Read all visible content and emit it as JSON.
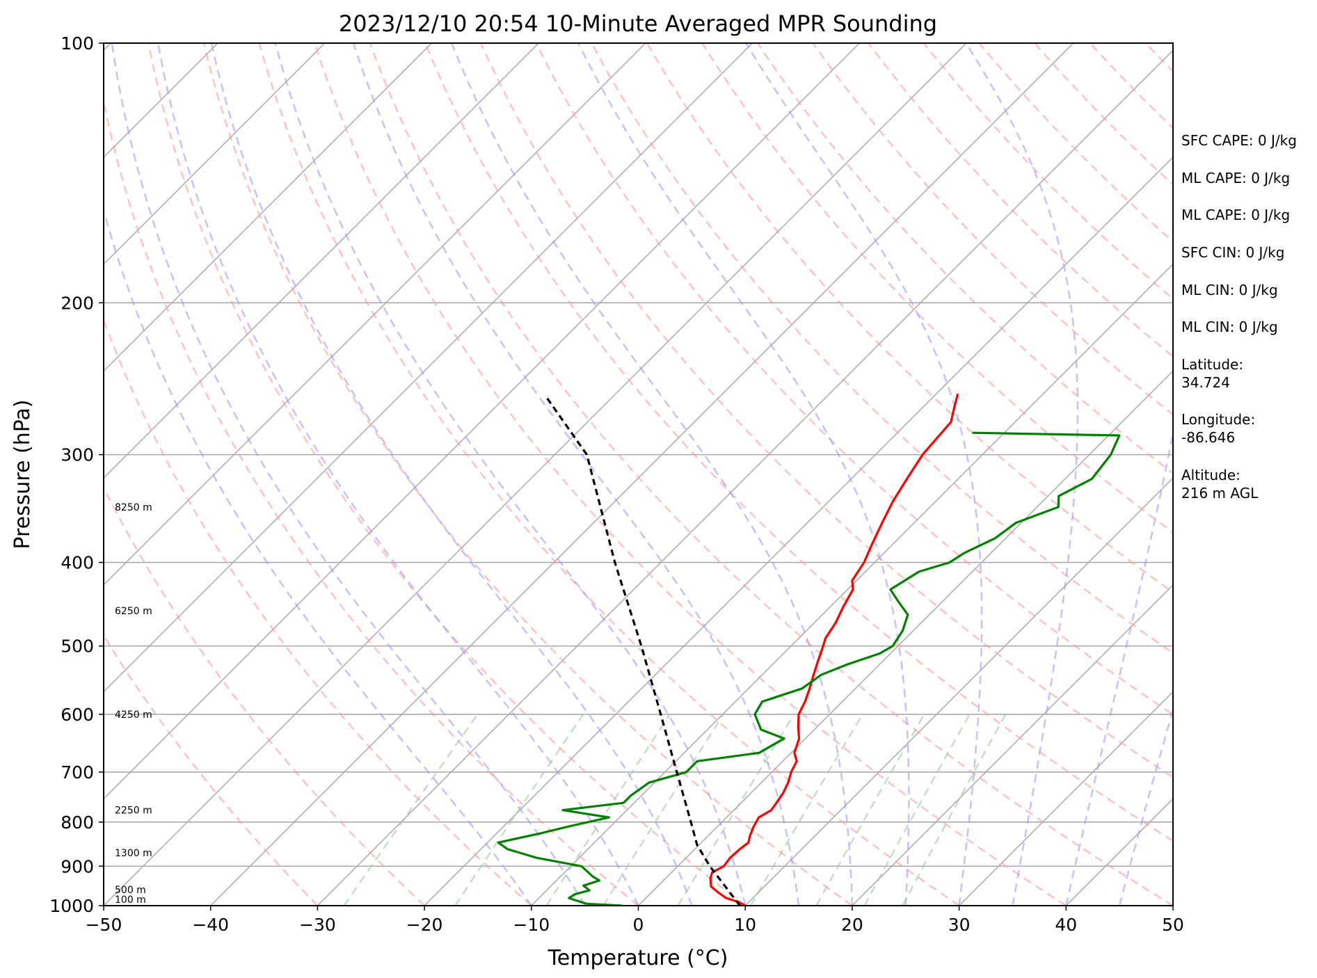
{
  "chart_data": {
    "type": "line",
    "title": "2023/12/10 20:54 10-Minute Averaged MPR Sounding",
    "xlabel": "Temperature (°C)",
    "ylabel": "Pressure (hPa)",
    "xlim": [
      -50,
      50
    ],
    "ylim": [
      1000,
      100
    ],
    "y_scale": "log",
    "x_ticks": [
      "−50",
      "−40",
      "−30",
      "−20",
      "−10",
      "0",
      "10",
      "20",
      "30",
      "40",
      "50"
    ],
    "y_ticks": [
      "100",
      "200",
      "300",
      "400",
      "500",
      "600",
      "700",
      "800",
      "900",
      "1000"
    ],
    "height_labels": [
      "8250 m",
      "6250 m",
      "4250 m",
      "2250 m",
      "1300 m",
      "500 m",
      "100 m"
    ],
    "height_label_pressures": [
      345,
      455,
      600,
      775,
      868,
      958,
      1000
    ],
    "grid": true,
    "background_lines": [
      "dry adiabats",
      "moist adiabats",
      "mixing ratio lines",
      "isotherms"
    ],
    "colors": {
      "temperature": "#ff0000",
      "dewpoint": "#008000",
      "parcel": "#000000",
      "dry_adiabat": "#ff9999",
      "moist_adiabat": "#9999ff",
      "mixing_ratio": "#99cc99",
      "isotherm": "#aaaaaa"
    },
    "series": [
      {
        "name": "temperature",
        "pressure": [
          1000,
          990,
          980,
          965,
          950,
          930,
          915,
          900,
          880,
          860,
          845,
          830,
          810,
          790,
          775,
          760,
          740,
          720,
          700,
          680,
          665,
          640,
          620,
          600,
          580,
          560,
          540,
          520,
          500,
          490,
          470,
          450,
          430,
          420,
          400,
          380,
          360,
          340,
          320,
          300,
          275,
          265,
          255
        ],
        "temp": [
          10.0,
          9.0,
          7.5,
          6.2,
          5.0,
          4.2,
          3.8,
          4.3,
          4.1,
          4.2,
          4.4,
          3.9,
          3.4,
          3.0,
          3.5,
          3.3,
          3.0,
          2.5,
          1.8,
          1.3,
          0.3,
          -0.6,
          -1.8,
          -2.9,
          -3.5,
          -4.3,
          -5.2,
          -6.1,
          -7.0,
          -7.5,
          -8.0,
          -8.8,
          -9.5,
          -10.4,
          -11.0,
          -12.0,
          -13.0,
          -14.0,
          -14.8,
          -15.6,
          -16.0,
          -17.0,
          -18.0
        ]
      },
      {
        "name": "dewpoint",
        "pressure": [
          1000,
          995,
          980,
          970,
          960,
          948,
          935,
          925,
          900,
          880,
          860,
          845,
          825,
          810,
          790,
          775,
          760,
          745,
          720,
          700,
          680,
          665,
          640,
          625,
          600,
          580,
          560,
          540,
          525,
          510,
          500,
          480,
          460,
          445,
          430,
          410,
          400,
          390,
          375,
          360,
          345,
          335,
          320,
          300,
          285,
          283
        ],
        "temp": [
          -1.5,
          -5.0,
          -7.2,
          -7.0,
          -6.0,
          -7.0,
          -6.0,
          -7.0,
          -9.0,
          -14.0,
          -17.5,
          -19.0,
          -16.0,
          -14.0,
          -11.0,
          -16.0,
          -11.0,
          -11.0,
          -10.5,
          -8.0,
          -8.0,
          -3.0,
          -2.0,
          -5.0,
          -7.0,
          -7.5,
          -5.0,
          -4.5,
          -3.0,
          -1.0,
          -0.5,
          -1.0,
          -2.0,
          -4.0,
          -6.0,
          -5.0,
          -3.0,
          -2.5,
          -1.0,
          -0.5,
          2.0,
          1.0,
          2.5,
          2.0,
          1.0,
          -13.0
        ]
      },
      {
        "name": "parcel",
        "pressure": [
          1000,
          900,
          850,
          800,
          700,
          600,
          500,
          400,
          300,
          258
        ],
        "temp": [
          9.5,
          3.0,
          -0.2,
          -2.9,
          -8.9,
          -15.8,
          -24.0,
          -34.3,
          -47.0,
          -56.0
        ]
      }
    ]
  },
  "info": {
    "sfc_cape": "SFC CAPE: 0 J/kg",
    "ml_cape_1": "ML CAPE: 0 J/kg",
    "ml_cape_2": "ML CAPE: 0 J/kg",
    "sfc_cin": "SFC CIN: 0 J/kg",
    "ml_cin_1": "ML CIN: 0 J/kg",
    "ml_cin_2": "ML CIN: 0 J/kg",
    "latitude_label": "Latitude:",
    "latitude_value": "34.724",
    "longitude_label": "Longitude:",
    "longitude_value": "-86.646",
    "altitude_label": "Altitude:",
    "altitude_value": "216 m AGL"
  }
}
